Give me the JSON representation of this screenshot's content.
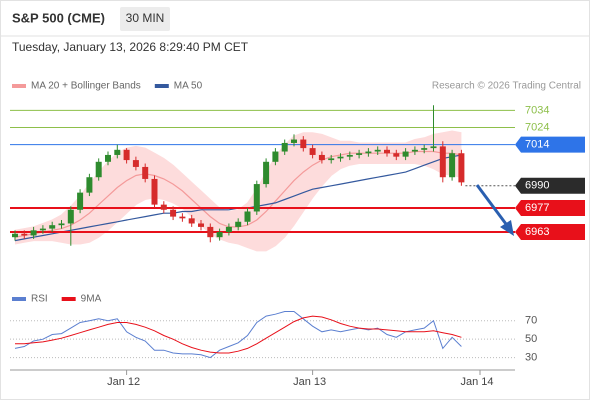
{
  "header": {
    "title": "S&P 500 (CME)",
    "timeframe": "30 MIN",
    "datetime": "Tuesday, January 13, 2026 8:29:40 PM CET"
  },
  "chart_data": [
    {
      "type": "candlestick",
      "copyright": "Research © 2026 Trading Central",
      "up_color": "#2e8b2e",
      "down_color": "#d62b2b",
      "ylim": [
        6935,
        7043
      ],
      "open": [
        6960,
        6962,
        6961,
        6964,
        6965,
        6967,
        6968,
        6976,
        6986,
        6995,
        7004,
        7008,
        7011,
        7005,
        7001,
        6994,
        6979,
        6976,
        6972,
        6971,
        6968,
        6966,
        6960,
        6963,
        6966,
        6969,
        6975,
        6991,
        7004,
        7010,
        7015,
        7017,
        7012,
        7008,
        7005,
        7006,
        7007,
        7008,
        7009,
        7010,
        7011,
        7009,
        7007,
        7010,
        7011,
        7012,
        7013,
        6995,
        7009,
        null,
        null
      ],
      "high": [
        6964,
        6964,
        6966,
        6967,
        6969,
        6970,
        6978,
        6988,
        6997,
        7006,
        7010,
        7014,
        7012,
        7007,
        7003,
        6996,
        6981,
        6978,
        6974,
        6973,
        6970,
        6968,
        6965,
        6968,
        6971,
        6977,
        6993,
        7006,
        7012,
        7017,
        7020,
        7019,
        7014,
        7010,
        7008,
        7009,
        7010,
        7011,
        7012,
        7013,
        7013,
        7011,
        7012,
        7013,
        7014,
        7037,
        7016,
        7011,
        7011,
        null,
        null
      ],
      "low": [
        6958,
        6959,
        6959,
        6962,
        6963,
        6965,
        6955,
        6974,
        6984,
        6993,
        7002,
        7006,
        7003,
        6999,
        6992,
        6977,
        6974,
        6970,
        6969,
        6966,
        6964,
        6957,
        6958,
        6961,
        6964,
        6967,
        6973,
        6989,
        7002,
        7008,
        7013,
        7010,
        7006,
        7003,
        7003,
        7004,
        7005,
        7006,
        7007,
        7008,
        7007,
        7005,
        7005,
        7008,
        7009,
        7010,
        6992,
        6993,
        6990,
        null,
        null
      ],
      "close": [
        6962,
        6961,
        6964,
        6965,
        6967,
        6968,
        6976,
        6986,
        6995,
        7004,
        7008,
        7011,
        7005,
        7001,
        6994,
        6979,
        6976,
        6972,
        6971,
        6968,
        6966,
        6960,
        6963,
        6966,
        6969,
        6975,
        6991,
        7004,
        7010,
        7015,
        7017,
        7012,
        7008,
        7005,
        7006,
        7007,
        7008,
        7009,
        7010,
        7011,
        7009,
        7007,
        7010,
        7011,
        7012,
        7013,
        6995,
        7009,
        6992,
        null,
        null
      ],
      "overlays": [
        {
          "name": "MA 20 + Bollinger Bands",
          "color": "#f49a9a",
          "band_color": "#fddcdc",
          "values": [
            6960,
            6961,
            6962,
            6963,
            6964,
            6965,
            6967,
            6970,
            6974,
            6979,
            6984,
            6989,
            6993,
            6996,
            6997,
            6996,
            6994,
            6991,
            6987,
            6982,
            6977,
            6972,
            6968,
            6966,
            6966,
            6967,
            6970,
            6975,
            6981,
            6987,
            6993,
            6998,
            7002,
            7005,
            7007,
            7008,
            7009,
            7009,
            7009,
            7009,
            7009,
            7009,
            7009,
            7010,
            7010,
            7010,
            7009,
            7009,
            7008,
            null,
            null
          ],
          "upper": [
            6964,
            6965,
            6966,
            6968,
            6970,
            6973,
            6978,
            6984,
            6991,
            6998,
            7004,
            7009,
            7012,
            7013,
            7012,
            7009,
            7006,
            7002,
            6997,
            6992,
            6987,
            6982,
            6977,
            6975,
            6976,
            6980,
            6988,
            6998,
            7007,
            7014,
            7019,
            7021,
            7021,
            7020,
            7018,
            7016,
            7016,
            7015,
            7015,
            7015,
            7015,
            7015,
            7015,
            7017,
            7018,
            7020,
            7021,
            7022,
            7021,
            null,
            null
          ],
          "lower": [
            6956,
            6957,
            6958,
            6958,
            6958,
            6957,
            6956,
            6956,
            6957,
            6960,
            6964,
            6969,
            6974,
            6979,
            6982,
            6983,
            6982,
            6980,
            6977,
            6972,
            6967,
            6962,
            6959,
            6957,
            6956,
            6954,
            6952,
            6952,
            6955,
            6960,
            6967,
            6975,
            6983,
            6990,
            6996,
            7000,
            7002,
            7003,
            7003,
            7003,
            7003,
            7003,
            7003,
            7003,
            7002,
            7000,
            6997,
            6996,
            6995,
            null,
            null
          ]
        },
        {
          "name": "MA 50",
          "color": "#34599e",
          "values": [
            6958,
            6959,
            6960,
            6961,
            6962,
            6963,
            6964,
            6965,
            6966,
            6967,
            6968,
            6969,
            6970,
            6971,
            6972,
            6973,
            6974,
            6974,
            6975,
            6975,
            6976,
            6976,
            6976,
            6976,
            6977,
            6977,
            6978,
            6979,
            6980,
            6982,
            6984,
            6986,
            6988,
            6989,
            6990,
            6991,
            6992,
            6993,
            6994,
            6995,
            6996,
            6997,
            6998,
            7000,
            7002,
            7004,
            7006,
            7007,
            7008,
            null,
            null
          ]
        }
      ],
      "levels": [
        {
          "value": 7034,
          "color": "#8dbf4a",
          "box": false,
          "current": false
        },
        {
          "value": 7024,
          "color": "#8dbf4a",
          "box": false,
          "current": false
        },
        {
          "value": 7014,
          "color": "#2e74e8",
          "box": true,
          "current": false
        },
        {
          "value": 6990,
          "color": "#2b2b2b",
          "box": true,
          "current": true
        },
        {
          "value": 6977,
          "color": "#e8101a",
          "box": true,
          "current": false
        },
        {
          "value": 6963,
          "color": "#e8101a",
          "box": true,
          "current": false
        }
      ]
    },
    {
      "type": "line",
      "ylim": [
        22,
        87
      ],
      "yticks": [
        30,
        50,
        70
      ],
      "categories": [
        null,
        null,
        null,
        null,
        null,
        null,
        null,
        null,
        null,
        null,
        null,
        null,
        "Jan 12",
        null,
        null,
        null,
        null,
        null,
        null,
        null,
        null,
        null,
        null,
        null,
        null,
        null,
        null,
        null,
        null,
        null,
        null,
        null,
        "Jan 13",
        null,
        null,
        null,
        null,
        null,
        null,
        null,
        null,
        null,
        null,
        null,
        null,
        null,
        null,
        null,
        null,
        null,
        "Jan 14"
      ],
      "series": [
        {
          "name": "RSI",
          "color": "#5b7fd0",
          "values": [
            40,
            42,
            48,
            50,
            55,
            56,
            62,
            68,
            70,
            72,
            70,
            72,
            58,
            52,
            48,
            38,
            38,
            35,
            34,
            34,
            33,
            30,
            38,
            42,
            46,
            54,
            68,
            75,
            77,
            80,
            80,
            72,
            64,
            58,
            60,
            58,
            60,
            62,
            60,
            62,
            55,
            52,
            58,
            60,
            62,
            70,
            40,
            52,
            42,
            null,
            null
          ]
        },
        {
          "name": "9MA",
          "color": "#e8101a",
          "values": [
            45,
            45,
            46,
            47,
            49,
            51,
            54,
            57,
            60,
            63,
            66,
            68,
            68,
            66,
            63,
            59,
            54,
            50,
            45,
            41,
            38,
            36,
            35,
            35,
            37,
            40,
            45,
            51,
            57,
            63,
            69,
            73,
            75,
            74,
            71,
            67,
            64,
            62,
            61,
            61,
            60,
            59,
            58,
            58,
            58,
            59,
            57,
            55,
            52,
            null,
            null
          ]
        }
      ]
    }
  ]
}
